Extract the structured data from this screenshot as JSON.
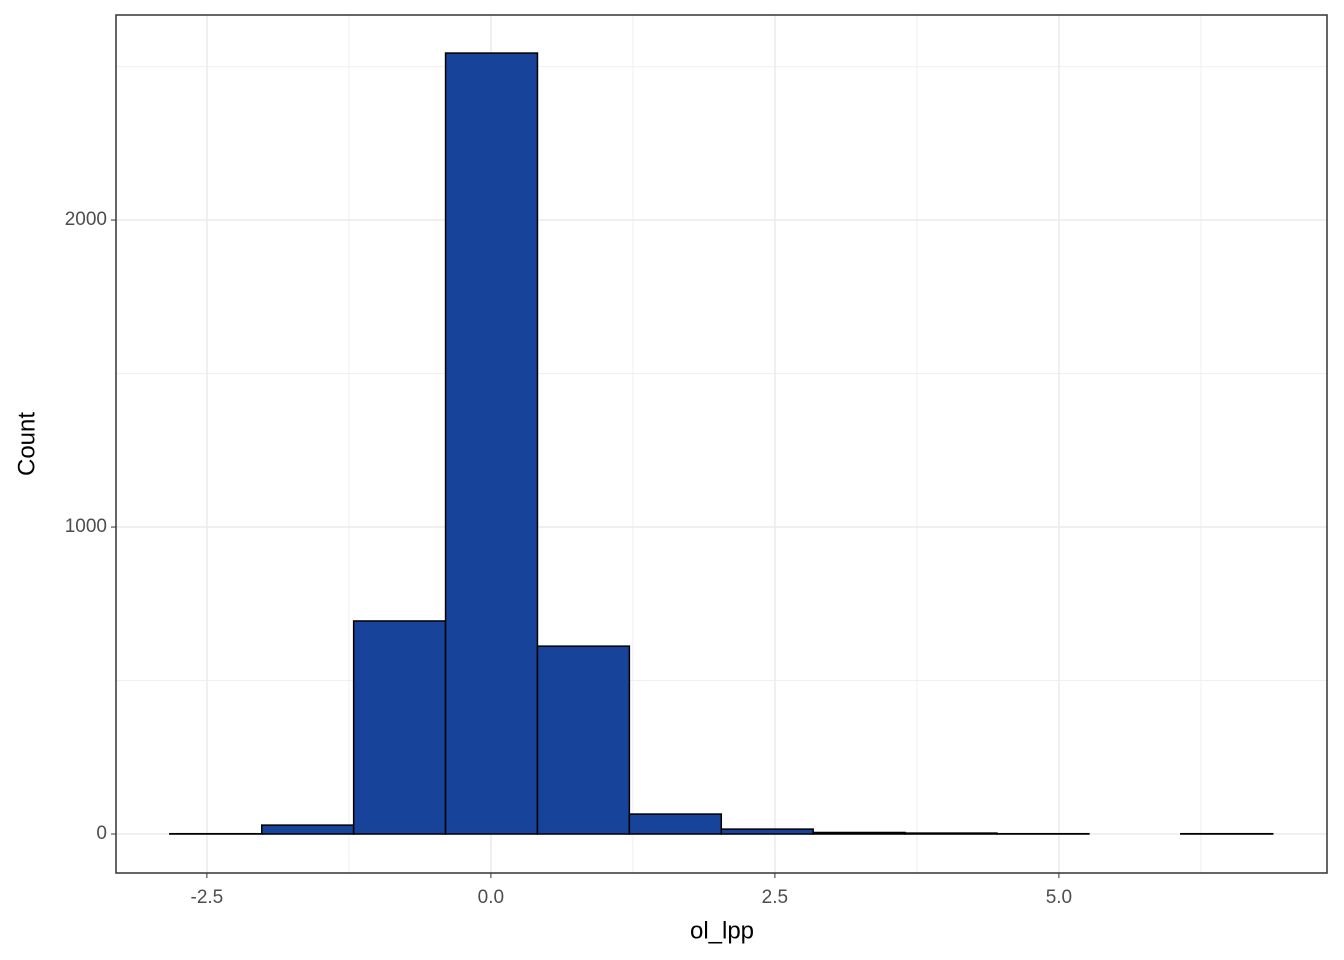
{
  "chart_data": {
    "type": "histogram",
    "x_label": "ol_lpp",
    "y_label": "Count",
    "bins": [
      -2.826,
      -2.017,
      -1.208,
      -0.399,
      0.41,
      1.219,
      2.028,
      2.837,
      3.646,
      4.455,
      5.264,
      6.073,
      6.882
    ],
    "values": [
      1,
      29,
      694,
      2544,
      612,
      65,
      16,
      5,
      3,
      1,
      0,
      1
    ],
    "color": "#17449a",
    "edge_color": "#000000",
    "xlim": [
      -3.3,
      7.36
    ],
    "ylim": [
      -127,
      2668
    ],
    "xticks": [
      -2.5,
      {
        "value": 0,
        "label": "0.0"
      },
      2.5,
      {
        "value": 5,
        "label": "5.0"
      }
    ],
    "yticks": [
      0,
      1000,
      2000
    ],
    "minor_xticks": [
      -1.25,
      1.25,
      3.75,
      6.25
    ],
    "minor_yticks": [
      500,
      1500,
      2500
    ],
    "grid": true
  }
}
